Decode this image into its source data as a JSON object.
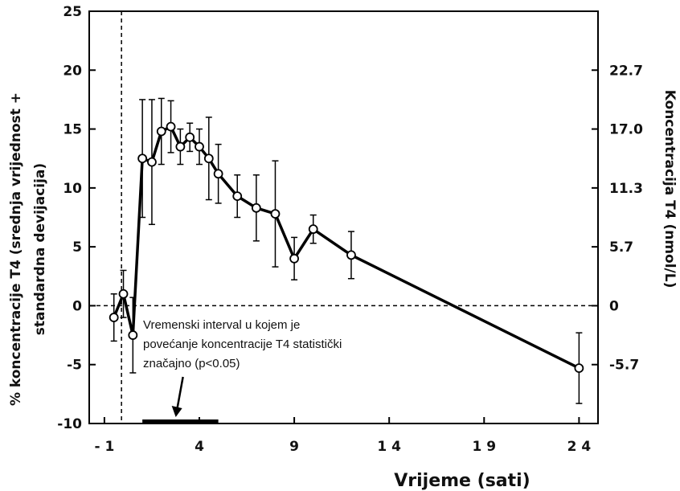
{
  "chart_data": {
    "type": "line",
    "xlabel": "Vrijeme (sati)",
    "ylabel_lines": [
      "% koncentracije T4 (srednja vrijednost +",
      "standardna devijacija)"
    ],
    "y2label": "Koncentracija T4 (nmol/L)",
    "xlim": [
      -1.8,
      25
    ],
    "ylim": [
      -10,
      25
    ],
    "x_ticks": [
      -1,
      4,
      9,
      14,
      19,
      24
    ],
    "x_tick_labels": [
      "- 1",
      "4",
      "9",
      "1 4",
      "1 9",
      "2 4"
    ],
    "y_ticks": [
      -10,
      -5,
      0,
      5,
      10,
      15,
      20,
      25
    ],
    "y_tick_labels": [
      "-10",
      "-5",
      "0",
      "5",
      "10",
      "15",
      "20",
      "25"
    ],
    "y2_ticks": [
      -5,
      0,
      5,
      10,
      15,
      20
    ],
    "y2_tick_labels": [
      "-5.7",
      "0",
      "5.7",
      "11.3",
      "17.0",
      "22.7"
    ],
    "zero_reference_line": 0,
    "treatment_line_x": -0.1,
    "x": [
      -0.5,
      0,
      0.5,
      1,
      1.5,
      2,
      2.5,
      3,
      3.5,
      4,
      4.5,
      5,
      6,
      7,
      8,
      9,
      10,
      12,
      24
    ],
    "y": [
      -1,
      1,
      -2.5,
      12.5,
      12.2,
      14.8,
      15.2,
      13.5,
      14.3,
      13.5,
      12.5,
      11.2,
      9.3,
      8.3,
      7.8,
      4,
      6.5,
      4.3,
      -5.3
    ],
    "error": [
      2,
      2,
      3.2,
      5,
      5.3,
      2.8,
      2.2,
      1.5,
      1.2,
      1.5,
      3.5,
      2.5,
      1.8,
      2.8,
      4.5,
      1.8,
      1.2,
      2,
      3
    ],
    "significance_interval": [
      1,
      5
    ],
    "annotation": [
      "Vremenski interval u kojem je",
      "povećanje koncentracije T4 statistički",
      "značajno (p<0.05)"
    ],
    "grid": false
  }
}
